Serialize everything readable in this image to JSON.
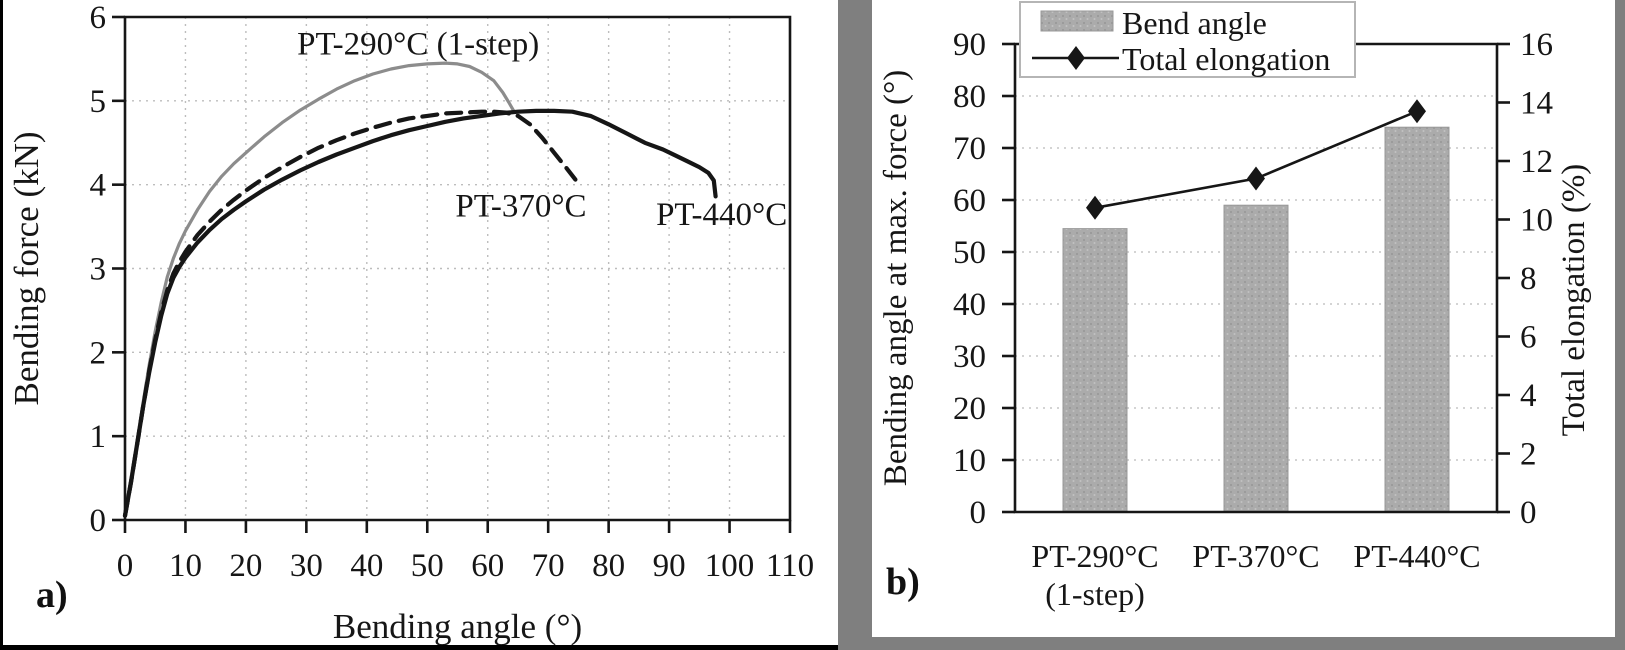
{
  "figure": {
    "left_tag": "a)",
    "right_tag": "b)"
  },
  "chart_data": [
    {
      "id": "a",
      "type": "line",
      "xlabel": "Bending angle (°)",
      "ylabel": "Bending force (kN)",
      "xlim": [
        0,
        110
      ],
      "xstep": 10,
      "ylim": [
        0,
        6
      ],
      "ystep": 1,
      "grid": "both, dotted",
      "legend_position": "none (inline curve labels)",
      "series": [
        {
          "name": "PT-290°C (1-step)",
          "style": "solid",
          "color": "#8c8c8c",
          "width": 3.2,
          "points": [
            [
              0,
              0.08
            ],
            [
              1,
              0.5
            ],
            [
              2,
              0.95
            ],
            [
              3,
              1.4
            ],
            [
              4,
              1.85
            ],
            [
              5,
              2.25
            ],
            [
              6,
              2.6
            ],
            [
              7,
              2.9
            ],
            [
              8,
              3.12
            ],
            [
              9,
              3.3
            ],
            [
              10,
              3.45
            ],
            [
              12,
              3.7
            ],
            [
              14,
              3.92
            ],
            [
              16,
              4.1
            ],
            [
              18,
              4.25
            ],
            [
              20,
              4.38
            ],
            [
              23,
              4.57
            ],
            [
              26,
              4.74
            ],
            [
              29,
              4.89
            ],
            [
              32,
              5.02
            ],
            [
              35,
              5.14
            ],
            [
              38,
              5.24
            ],
            [
              41,
              5.32
            ],
            [
              44,
              5.38
            ],
            [
              47,
              5.42
            ],
            [
              50,
              5.44
            ],
            [
              53,
              5.45
            ],
            [
              55,
              5.44
            ],
            [
              57,
              5.41
            ],
            [
              59,
              5.34
            ],
            [
              61,
              5.24
            ],
            [
              62.5,
              5.1
            ],
            [
              63.5,
              4.98
            ],
            [
              64.3,
              4.88
            ]
          ]
        },
        {
          "name": "PT-370°C",
          "style": "dashed",
          "color": "#161616",
          "width": 4.2,
          "points": [
            [
              0,
              0.05
            ],
            [
              1,
              0.45
            ],
            [
              2,
              0.9
            ],
            [
              3,
              1.35
            ],
            [
              4,
              1.78
            ],
            [
              5,
              2.15
            ],
            [
              6,
              2.48
            ],
            [
              7,
              2.74
            ],
            [
              8,
              2.94
            ],
            [
              9,
              3.08
            ],
            [
              10,
              3.2
            ],
            [
              12,
              3.4
            ],
            [
              14,
              3.56
            ],
            [
              16,
              3.7
            ],
            [
              18,
              3.82
            ],
            [
              20,
              3.93
            ],
            [
              23,
              4.08
            ],
            [
              26,
              4.21
            ],
            [
              29,
              4.33
            ],
            [
              32,
              4.44
            ],
            [
              35,
              4.53
            ],
            [
              38,
              4.61
            ],
            [
              41,
              4.68
            ],
            [
              44,
              4.74
            ],
            [
              47,
              4.79
            ],
            [
              50,
              4.82
            ],
            [
              53,
              4.85
            ],
            [
              56,
              4.86
            ],
            [
              59,
              4.87
            ],
            [
              61,
              4.87
            ],
            [
              63,
              4.86
            ],
            [
              65,
              4.82
            ],
            [
              67,
              4.72
            ],
            [
              69,
              4.56
            ],
            [
              71,
              4.38
            ],
            [
              73,
              4.2
            ],
            [
              74.5,
              4.06
            ]
          ]
        },
        {
          "name": "PT-440°C",
          "style": "solid",
          "color": "#161616",
          "width": 4.2,
          "points": [
            [
              0,
              0.05
            ],
            [
              1,
              0.45
            ],
            [
              2,
              0.9
            ],
            [
              3,
              1.35
            ],
            [
              4,
              1.76
            ],
            [
              5,
              2.12
            ],
            [
              6,
              2.44
            ],
            [
              7,
              2.7
            ],
            [
              8,
              2.89
            ],
            [
              9,
              3.02
            ],
            [
              10,
              3.13
            ],
            [
              12,
              3.31
            ],
            [
              14,
              3.46
            ],
            [
              16,
              3.59
            ],
            [
              18,
              3.7
            ],
            [
              20,
              3.8
            ],
            [
              23,
              3.94
            ],
            [
              26,
              4.06
            ],
            [
              29,
              4.17
            ],
            [
              32,
              4.27
            ],
            [
              35,
              4.36
            ],
            [
              38,
              4.44
            ],
            [
              41,
              4.52
            ],
            [
              44,
              4.59
            ],
            [
              47,
              4.65
            ],
            [
              50,
              4.7
            ],
            [
              53,
              4.75
            ],
            [
              56,
              4.79
            ],
            [
              59,
              4.82
            ],
            [
              62,
              4.85
            ],
            [
              65,
              4.87
            ],
            [
              68,
              4.88
            ],
            [
              71,
              4.88
            ],
            [
              74,
              4.87
            ],
            [
              77,
              4.82
            ],
            [
              80,
              4.72
            ],
            [
              83,
              4.61
            ],
            [
              86,
              4.5
            ],
            [
              89,
              4.42
            ],
            [
              91,
              4.35
            ],
            [
              93,
              4.28
            ],
            [
              95,
              4.21
            ],
            [
              96.5,
              4.14
            ],
            [
              97.4,
              4.05
            ],
            [
              97.7,
              3.86
            ]
          ]
        }
      ],
      "annotations": [
        {
          "text": "PT-290°C (1-step)",
          "x": 48.5,
          "y": 5.55
        },
        {
          "text": "PT-370°C",
          "x": 65.5,
          "y": 3.62
        },
        {
          "text": "PT-440°C",
          "x": 98.7,
          "y": 3.52
        }
      ]
    },
    {
      "id": "b",
      "type": "bar+line",
      "categories": [
        [
          "PT-290°C",
          "(1-step)"
        ],
        [
          "PT-370°C"
        ],
        [
          "PT-440°C"
        ]
      ],
      "bar_series": {
        "name": "Bend angle",
        "axis": "left",
        "values": [
          54.5,
          59,
          74
        ],
        "color": "#ababab"
      },
      "line_series": {
        "name": "Total elongation",
        "axis": "right",
        "values": [
          10.4,
          11.4,
          13.7
        ],
        "color": "#161616",
        "marker": "diamond"
      },
      "left_axis": {
        "label": "Bending angle at max. force (°)",
        "lim": [
          0,
          90
        ],
        "step": 10
      },
      "right_axis": {
        "label": "Total elongation (%)",
        "lim": [
          0,
          16
        ],
        "step": 2
      },
      "grid": "horizontal, dotted",
      "legend_position": "top, boxed",
      "legend": [
        "Bend angle",
        "Total elongation"
      ]
    }
  ]
}
